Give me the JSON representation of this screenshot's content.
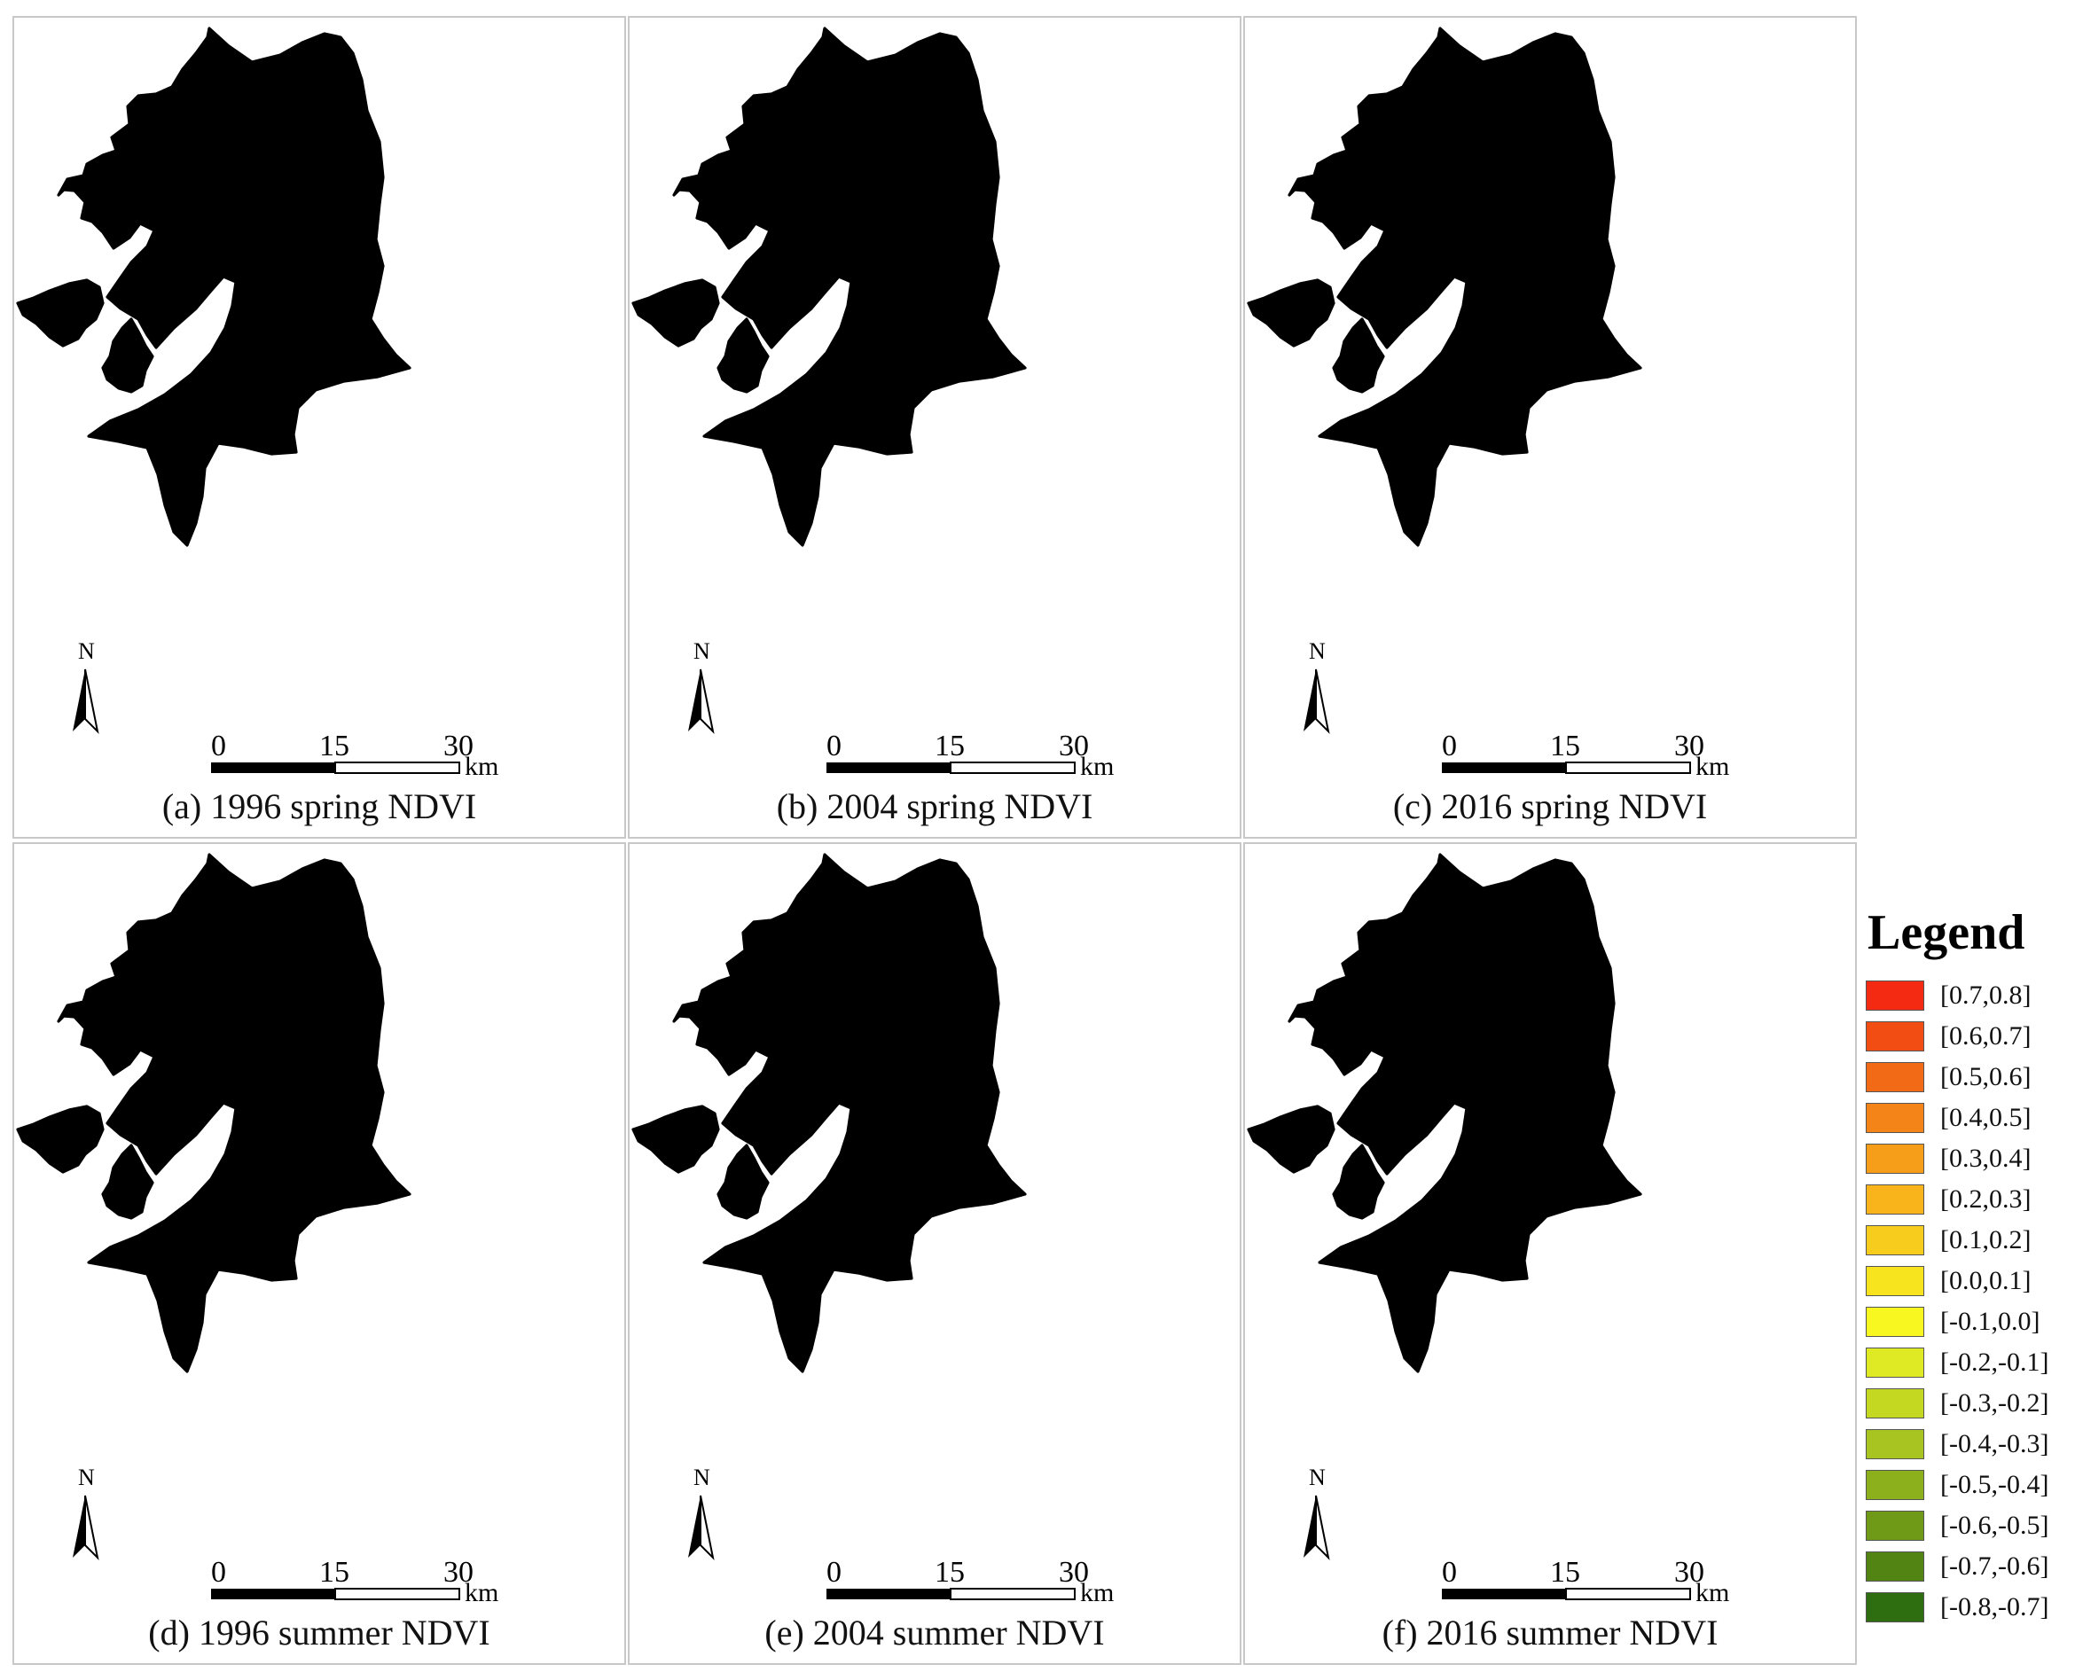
{
  "scale_bar": {
    "ticks": [
      "0",
      "15",
      "30"
    ],
    "unit": "km"
  },
  "north_label": "N",
  "panels": [
    {
      "caption": "(a) 1996 spring NDVI",
      "palette": {
        "base": "#f2b81c",
        "light": "#f5ea22",
        "dark": "#ee9a1a",
        "green": "#8cbd28"
      }
    },
    {
      "caption": "(b) 2004 spring NDVI",
      "palette": {
        "base": "#f3c31e",
        "light": "#f6ef23",
        "dark": "#ee8a1a",
        "green": "#9cc42a"
      }
    },
    {
      "caption": "(c) 2016 spring NDVI",
      "palette": {
        "base": "#f4e020",
        "light": "#f7f526",
        "dark": "#f0b01c",
        "green": "#bdd62c"
      }
    },
    {
      "caption": "(d) 1996 summer NDVI",
      "palette": {
        "base": "#ea4a16",
        "light": "#f4e41c",
        "dark": "#e22d12",
        "green": "#a8cc2c"
      }
    },
    {
      "caption": "(e) 2004 summer NDVI",
      "palette": {
        "base": "#ee7a1a",
        "light": "#f4b61e",
        "dark": "#ea5a16",
        "green": "#b8d22c"
      }
    },
    {
      "caption": "(f) 2016 summer NDVI",
      "palette": {
        "base": "#f2b01c",
        "light": "#f5e622",
        "dark": "#ee8c1a",
        "green": "#c4da2c"
      }
    }
  ],
  "legend": {
    "title": "Legend",
    "items": [
      {
        "label": "[0.7,0.8]",
        "color": "#f42a12"
      },
      {
        "label": "[0.6,0.7]",
        "color": "#f24e14"
      },
      {
        "label": "[0.5,0.6]",
        "color": "#f26a16"
      },
      {
        "label": "[0.4,0.5]",
        "color": "#f48418"
      },
      {
        "label": "[0.3,0.4]",
        "color": "#f69e1a"
      },
      {
        "label": "[0.2,0.3]",
        "color": "#f8b41a"
      },
      {
        "label": "[0.1,0.2]",
        "color": "#f8cc1c"
      },
      {
        "label": "[0.0,0.1]",
        "color": "#f8e41e"
      },
      {
        "label": "[-0.1,0.0]",
        "color": "#f8f820"
      },
      {
        "label": "[-0.2,-0.1]",
        "color": "#e0ea24"
      },
      {
        "label": "[-0.3,-0.2]",
        "color": "#c4d822"
      },
      {
        "label": "[-0.4,-0.3]",
        "color": "#a8c420"
      },
      {
        "label": "[-0.5,-0.4]",
        "color": "#8cb01c"
      },
      {
        "label": "[-0.6,-0.5]",
        "color": "#6e9a18"
      },
      {
        "label": "[-0.7,-0.6]",
        "color": "#528414"
      },
      {
        "label": "[-0.8,-0.7]",
        "color": "#2f6e10"
      }
    ]
  }
}
